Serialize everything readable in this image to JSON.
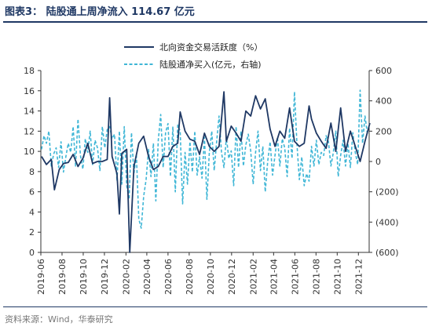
{
  "header": {
    "title": "图表3：  陆股通上周净流入 114.67 亿元"
  },
  "footer": {
    "source": "资料来源：Wind，华泰研究"
  },
  "colors": {
    "primary_series": "#1f3864",
    "secondary_series": "#3fb6d6",
    "rule": "#1f3864"
  },
  "chart_data": {
    "type": "line",
    "title": "",
    "x_tick_labels": [
      "2019-06",
      "2019-08",
      "2019-10",
      "2019-12",
      "2020-02",
      "2020-04",
      "2020-06",
      "2020-08",
      "2020-10",
      "2020-12",
      "2021-02",
      "2021-04",
      "2021-06",
      "2021-08",
      "2021-10",
      "2021-12"
    ],
    "x_range": [
      "2019-06",
      "2022-01"
    ],
    "y_left": {
      "range": [
        0,
        18
      ],
      "ticks": [
        "0",
        "2",
        "4",
        "6",
        "8",
        "10",
        "12",
        "14",
        "16",
        "18"
      ]
    },
    "y_right": {
      "range": [
        -600,
        600
      ],
      "ticks": [
        "(600)",
        "(400)",
        "(200)",
        "0",
        "200",
        "400",
        "600"
      ]
    },
    "legend": {
      "placement": "top-center"
    },
    "grid": false,
    "series": [
      {
        "name": "北向资金交易活跃度（%）",
        "axis": "left",
        "style": "solid",
        "points": [
          [
            "2019-06-03",
            9.5
          ],
          [
            "2019-06-17",
            8.7
          ],
          [
            "2019-07-01",
            9.2
          ],
          [
            "2019-07-10",
            6.2
          ],
          [
            "2019-07-24",
            8.2
          ],
          [
            "2019-08-05",
            8.8
          ],
          [
            "2019-08-19",
            8.9
          ],
          [
            "2019-09-02",
            9.7
          ],
          [
            "2019-09-16",
            8.5
          ],
          [
            "2019-09-30",
            9.3
          ],
          [
            "2019-10-14",
            10.8
          ],
          [
            "2019-10-28",
            8.8
          ],
          [
            "2019-11-11",
            9.0
          ],
          [
            "2019-11-25",
            9.0
          ],
          [
            "2019-12-09",
            9.2
          ],
          [
            "2019-12-16",
            15.3
          ],
          [
            "2019-12-23",
            9.5
          ],
          [
            "2020-01-06",
            7.8
          ],
          [
            "2020-01-13",
            3.8
          ],
          [
            "2020-01-20",
            9.8
          ],
          [
            "2020-02-03",
            10.2
          ],
          [
            "2020-02-12",
            0.0
          ],
          [
            "2020-02-24",
            8.5
          ],
          [
            "2020-03-09",
            10.8
          ],
          [
            "2020-03-23",
            11.5
          ],
          [
            "2020-04-06",
            9.5
          ],
          [
            "2020-04-20",
            8.2
          ],
          [
            "2020-05-04",
            8.5
          ],
          [
            "2020-05-18",
            9.5
          ],
          [
            "2020-06-01",
            9.5
          ],
          [
            "2020-06-15",
            10.5
          ],
          [
            "2020-06-29",
            10.8
          ],
          [
            "2020-07-06",
            13.9
          ],
          [
            "2020-07-20",
            12.0
          ],
          [
            "2020-08-03",
            11.2
          ],
          [
            "2020-08-17",
            11.0
          ],
          [
            "2020-08-31",
            9.7
          ],
          [
            "2020-09-14",
            11.8
          ],
          [
            "2020-09-28",
            10.5
          ],
          [
            "2020-10-12",
            10.0
          ],
          [
            "2020-10-26",
            10.5
          ],
          [
            "2020-11-09",
            15.9
          ],
          [
            "2020-11-16",
            11.0
          ],
          [
            "2020-11-30",
            12.5
          ],
          [
            "2020-12-14",
            11.8
          ],
          [
            "2020-12-28",
            11.0
          ],
          [
            "2021-01-11",
            14.0
          ],
          [
            "2021-01-25",
            13.5
          ],
          [
            "2021-02-08",
            15.5
          ],
          [
            "2021-02-22",
            14.2
          ],
          [
            "2021-03-08",
            15.2
          ],
          [
            "2021-03-22",
            12.2
          ],
          [
            "2021-04-05",
            10.5
          ],
          [
            "2021-04-19",
            12.0
          ],
          [
            "2021-05-03",
            11.3
          ],
          [
            "2021-05-17",
            14.3
          ],
          [
            "2021-05-31",
            11.0
          ],
          [
            "2021-06-14",
            10.5
          ],
          [
            "2021-06-28",
            10.8
          ],
          [
            "2021-07-12",
            14.5
          ],
          [
            "2021-07-19",
            13.2
          ],
          [
            "2021-08-02",
            11.8
          ],
          [
            "2021-08-16",
            11.0
          ],
          [
            "2021-08-30",
            10.3
          ],
          [
            "2021-09-13",
            12.8
          ],
          [
            "2021-09-27",
            10.0
          ],
          [
            "2021-10-11",
            14.3
          ],
          [
            "2021-10-25",
            10.0
          ],
          [
            "2021-11-08",
            12.0
          ],
          [
            "2021-11-22",
            10.5
          ],
          [
            "2021-12-06",
            9.0
          ],
          [
            "2021-12-20",
            11.0
          ],
          [
            "2022-01-03",
            12.8
          ]
        ]
      },
      {
        "name": "陆股通净买入(亿元，右轴)",
        "axis": "right",
        "style": "dashed",
        "points": [
          [
            "2019-06-03",
            80
          ],
          [
            "2019-06-10",
            170
          ],
          [
            "2019-06-17",
            120
          ],
          [
            "2019-06-24",
            200
          ],
          [
            "2019-07-01",
            -30
          ],
          [
            "2019-07-08",
            50
          ],
          [
            "2019-07-15",
            90
          ],
          [
            "2019-07-22",
            -40
          ],
          [
            "2019-07-29",
            130
          ],
          [
            "2019-08-05",
            -70
          ],
          [
            "2019-08-12",
            30
          ],
          [
            "2019-08-19",
            120
          ],
          [
            "2019-08-26",
            60
          ],
          [
            "2019-09-02",
            230
          ],
          [
            "2019-09-09",
            -30
          ],
          [
            "2019-09-16",
            280
          ],
          [
            "2019-09-23",
            40
          ],
          [
            "2019-09-30",
            -50
          ],
          [
            "2019-10-07",
            150
          ],
          [
            "2019-10-14",
            60
          ],
          [
            "2019-10-21",
            200
          ],
          [
            "2019-10-28",
            -20
          ],
          [
            "2019-11-04",
            140
          ],
          [
            "2019-11-11",
            90
          ],
          [
            "2019-11-18",
            -60
          ],
          [
            "2019-11-25",
            230
          ],
          [
            "2019-12-02",
            90
          ],
          [
            "2019-12-09",
            210
          ],
          [
            "2019-12-16",
            230
          ],
          [
            "2019-12-23",
            150
          ],
          [
            "2019-12-30",
            180
          ],
          [
            "2020-01-06",
            -130
          ],
          [
            "2020-01-13",
            200
          ],
          [
            "2020-01-20",
            -150
          ],
          [
            "2020-01-27",
            230
          ],
          [
            "2020-02-03",
            -160
          ],
          [
            "2020-02-10",
            -250
          ],
          [
            "2020-02-17",
            190
          ],
          [
            "2020-02-24",
            -80
          ],
          [
            "2020-03-02",
            50
          ],
          [
            "2020-03-09",
            -380
          ],
          [
            "2020-03-16",
            -440
          ],
          [
            "2020-03-23",
            -230
          ],
          [
            "2020-03-30",
            -120
          ],
          [
            "2020-04-06",
            80
          ],
          [
            "2020-04-13",
            -100
          ],
          [
            "2020-04-20",
            120
          ],
          [
            "2020-04-27",
            -260
          ],
          [
            "2020-05-04",
            140
          ],
          [
            "2020-05-11",
            310
          ],
          [
            "2020-05-18",
            -40
          ],
          [
            "2020-05-25",
            190
          ],
          [
            "2020-06-01",
            250
          ],
          [
            "2020-06-08",
            -100
          ],
          [
            "2020-06-15",
            230
          ],
          [
            "2020-06-22",
            -200
          ],
          [
            "2020-06-29",
            240
          ],
          [
            "2020-07-06",
            200
          ],
          [
            "2020-07-13",
            -280
          ],
          [
            "2020-07-20",
            60
          ],
          [
            "2020-07-27",
            -150
          ],
          [
            "2020-08-03",
            130
          ],
          [
            "2020-08-10",
            -70
          ],
          [
            "2020-08-17",
            200
          ],
          [
            "2020-08-24",
            -90
          ],
          [
            "2020-08-31",
            30
          ],
          [
            "2020-09-07",
            -110
          ],
          [
            "2020-09-14",
            160
          ],
          [
            "2020-09-21",
            -250
          ],
          [
            "2020-09-28",
            60
          ],
          [
            "2020-10-05",
            200
          ],
          [
            "2020-10-12",
            -60
          ],
          [
            "2020-10-19",
            130
          ],
          [
            "2020-10-26",
            300
          ],
          [
            "2020-11-02",
            60
          ],
          [
            "2020-11-09",
            -40
          ],
          [
            "2020-11-16",
            160
          ],
          [
            "2020-11-23",
            20
          ],
          [
            "2020-11-30",
            70
          ],
          [
            "2020-12-07",
            -160
          ],
          [
            "2020-12-14",
            230
          ],
          [
            "2020-12-21",
            -40
          ],
          [
            "2020-12-28",
            200
          ],
          [
            "2021-01-04",
            -30
          ],
          [
            "2021-01-11",
            110
          ],
          [
            "2021-01-18",
            180
          ],
          [
            "2021-01-25",
            70
          ],
          [
            "2021-02-01",
            -150
          ],
          [
            "2021-02-08",
            60
          ],
          [
            "2021-02-15",
            200
          ],
          [
            "2021-02-22",
            -60
          ],
          [
            "2021-03-01",
            100
          ],
          [
            "2021-03-08",
            -200
          ],
          [
            "2021-03-15",
            0
          ],
          [
            "2021-03-22",
            130
          ],
          [
            "2021-03-29",
            -90
          ],
          [
            "2021-04-05",
            40
          ],
          [
            "2021-04-12",
            160
          ],
          [
            "2021-04-19",
            -30
          ],
          [
            "2021-04-26",
            150
          ],
          [
            "2021-05-03",
            90
          ],
          [
            "2021-05-10",
            -100
          ],
          [
            "2021-05-17",
            220
          ],
          [
            "2021-05-24",
            20
          ],
          [
            "2021-05-31",
            460
          ],
          [
            "2021-06-07",
            120
          ],
          [
            "2021-06-14",
            -120
          ],
          [
            "2021-06-21",
            30
          ],
          [
            "2021-06-28",
            -160
          ],
          [
            "2021-07-05",
            -80
          ],
          [
            "2021-07-12",
            -130
          ],
          [
            "2021-07-19",
            100
          ],
          [
            "2021-07-26",
            -30
          ],
          [
            "2021-08-02",
            140
          ],
          [
            "2021-08-09",
            -20
          ],
          [
            "2021-08-16",
            60
          ],
          [
            "2021-08-23",
            40
          ],
          [
            "2021-08-30",
            170
          ],
          [
            "2021-09-06",
            130
          ],
          [
            "2021-09-13",
            -30
          ],
          [
            "2021-09-20",
            60
          ],
          [
            "2021-09-27",
            200
          ],
          [
            "2021-10-04",
            -100
          ],
          [
            "2021-10-11",
            40
          ],
          [
            "2021-10-18",
            140
          ],
          [
            "2021-10-25",
            -30
          ],
          [
            "2021-11-01",
            120
          ],
          [
            "2021-11-08",
            -40
          ],
          [
            "2021-11-15",
            190
          ],
          [
            "2021-11-22",
            60
          ],
          [
            "2021-11-29",
            -20
          ],
          [
            "2021-12-06",
            470
          ],
          [
            "2021-12-13",
            120
          ],
          [
            "2021-12-20",
            300
          ],
          [
            "2021-12-27",
            180
          ]
        ]
      }
    ]
  }
}
